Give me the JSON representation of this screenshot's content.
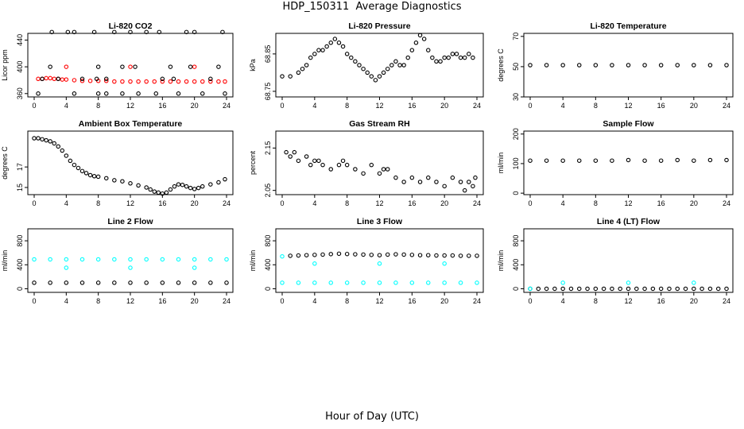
{
  "page": {
    "title": "HDP_150311  Average Diagnostics",
    "xlabel": "Hour of Day (UTC)"
  },
  "chart_data": [
    {
      "type": "scatter",
      "title": "Li-820 CO2",
      "ylabel": "Licor ppm",
      "xlim": [
        0,
        24
      ],
      "xticks": [
        0,
        4,
        8,
        12,
        16,
        20,
        24
      ],
      "ylim": [
        355,
        450
      ],
      "yticks": [
        360,
        400,
        440
      ],
      "series": [
        {
          "name": "main",
          "color": "#ff0000",
          "x": [
            0.5,
            1,
            1.5,
            2,
            2.5,
            3,
            3.5,
            4,
            5,
            6,
            7,
            8,
            9,
            10,
            11,
            12,
            13,
            14,
            15,
            16,
            17,
            18,
            19,
            20,
            21,
            22,
            23,
            23.8
          ],
          "y": [
            382,
            382,
            383,
            383,
            382,
            382,
            381,
            381,
            380,
            379,
            379,
            379,
            379,
            378,
            378,
            378,
            378,
            378,
            378,
            378,
            378,
            378,
            378,
            378,
            378,
            378,
            378,
            378
          ]
        },
        {
          "name": "red-outliers",
          "color": "#ff0000",
          "x": [
            4,
            12,
            20
          ],
          "y": [
            400,
            400,
            400
          ]
        },
        {
          "name": "black-outliers",
          "color": "#000000",
          "x": [
            0.5,
            1,
            2,
            2.2,
            3,
            4.2,
            5,
            5,
            6,
            7.5,
            7.8,
            8,
            8,
            9,
            9,
            10,
            11,
            11,
            12,
            12.6,
            13,
            14,
            15.2,
            15.6,
            16,
            17,
            17.4,
            18,
            19,
            19.5,
            20,
            21,
            22,
            23,
            23.5,
            23.8
          ],
          "y": [
            360,
            382,
            400,
            452,
            382,
            452,
            452,
            360,
            382,
            452,
            382,
            360,
            400,
            360,
            382,
            452,
            400,
            360,
            452,
            400,
            360,
            452,
            360,
            452,
            382,
            400,
            382,
            360,
            452,
            400,
            452,
            360,
            382,
            400,
            452,
            360
          ]
        }
      ]
    },
    {
      "type": "scatter",
      "title": "Li-820 Pressure",
      "ylabel": "kPa",
      "xlim": [
        0,
        24
      ],
      "xticks": [
        0,
        4,
        8,
        12,
        16,
        20,
        24
      ],
      "ylim": [
        68.735,
        68.905
      ],
      "yticks": [
        68.75,
        68.85
      ],
      "series": [
        {
          "name": "black",
          "color": "#000000",
          "x": [
            0,
            1,
            2,
            2.5,
            3,
            3.5,
            4,
            4.5,
            5,
            5.5,
            6,
            6.5,
            7,
            7.5,
            8,
            8.5,
            9,
            9.5,
            10,
            10.5,
            11,
            11.5,
            12,
            12.5,
            13,
            13.5,
            14,
            14.5,
            15,
            15.5,
            16,
            16.5,
            17,
            17.5,
            18,
            18.5,
            19,
            19.5,
            20,
            20.5,
            21,
            21.5,
            22,
            22.5,
            23,
            23.5
          ],
          "y": [
            68.79,
            68.79,
            68.8,
            68.81,
            68.82,
            68.84,
            68.85,
            68.86,
            68.86,
            68.87,
            68.88,
            68.89,
            68.88,
            68.87,
            68.85,
            68.84,
            68.83,
            68.82,
            68.81,
            68.8,
            68.79,
            68.78,
            68.79,
            68.8,
            68.81,
            68.82,
            68.83,
            68.82,
            68.82,
            68.84,
            68.86,
            68.88,
            68.9,
            68.89,
            68.86,
            68.84,
            68.83,
            68.83,
            68.84,
            68.84,
            68.85,
            68.85,
            68.84,
            68.84,
            68.85,
            68.84
          ]
        }
      ]
    },
    {
      "type": "scatter",
      "title": "Li-820 Temperature",
      "ylabel": "degrees C",
      "xlim": [
        0,
        24
      ],
      "xticks": [
        0,
        4,
        8,
        12,
        16,
        20,
        24
      ],
      "ylim": [
        30,
        72
      ],
      "yticks": [
        30,
        50,
        70
      ],
      "series": [
        {
          "name": "main",
          "color": "#000000",
          "x": [
            0,
            2,
            4,
            6,
            8,
            10,
            12,
            14,
            16,
            18,
            20,
            22,
            24
          ],
          "y": [
            51,
            51,
            51,
            51,
            51,
            51,
            51,
            51,
            51,
            51,
            51,
            51,
            51
          ]
        }
      ]
    },
    {
      "type": "scatter",
      "title": "Ambient Box Temperature",
      "ylabel": "degrees C",
      "xlim": [
        0,
        24
      ],
      "xticks": [
        0,
        4,
        8,
        12,
        16,
        20,
        24
      ],
      "ylim": [
        14.3,
        20.5
      ],
      "yticks": [
        15,
        17
      ],
      "series": [
        {
          "name": "main",
          "color": "#000000",
          "x": [
            0,
            0.5,
            1,
            1.5,
            2,
            2.5,
            3,
            3.5,
            4,
            4.5,
            5,
            5.5,
            6,
            6.5,
            7,
            7.5,
            8,
            9,
            10,
            11,
            12,
            13,
            14,
            14.5,
            15,
            15.5,
            16,
            16.5,
            17,
            17.5,
            18,
            18.5,
            19,
            19.5,
            20,
            20.5,
            21,
            22,
            23,
            23.8
          ],
          "y": [
            19.8,
            19.8,
            19.7,
            19.6,
            19.5,
            19.3,
            19.0,
            18.6,
            18.1,
            17.6,
            17.2,
            16.9,
            16.6,
            16.4,
            16.2,
            16.1,
            16.05,
            15.9,
            15.7,
            15.6,
            15.4,
            15.2,
            15.0,
            14.8,
            14.6,
            14.5,
            14.4,
            14.5,
            14.8,
            15.1,
            15.3,
            15.25,
            15.1,
            14.95,
            14.85,
            14.95,
            15.1,
            15.3,
            15.5,
            15.8
          ]
        }
      ]
    },
    {
      "type": "scatter",
      "title": "Gas Stream RH",
      "ylabel": "percent",
      "xlim": [
        0,
        24
      ],
      "xticks": [
        0,
        4,
        8,
        12,
        16,
        20,
        24
      ],
      "ylim": [
        2.04,
        2.19
      ],
      "yticks": [
        2.05,
        2.15
      ],
      "series": [
        {
          "name": "black",
          "color": "#000000",
          "x": [
            0.5,
            1,
            1.5,
            2,
            3,
            3.5,
            4,
            4.5,
            5,
            6,
            7,
            7.5,
            8,
            9,
            10,
            11,
            12,
            12.5,
            13,
            14,
            15,
            16,
            17,
            18,
            19,
            20,
            21,
            22,
            22.5,
            23,
            23.5,
            23.8
          ],
          "y": [
            2.14,
            2.13,
            2.14,
            2.12,
            2.13,
            2.11,
            2.12,
            2.12,
            2.11,
            2.1,
            2.11,
            2.12,
            2.11,
            2.1,
            2.09,
            2.11,
            2.09,
            2.1,
            2.1,
            2.08,
            2.07,
            2.08,
            2.07,
            2.08,
            2.07,
            2.06,
            2.08,
            2.07,
            2.05,
            2.07,
            2.06,
            2.08
          ]
        }
      ]
    },
    {
      "type": "scatter",
      "title": "Sample Flow",
      "ylabel": "ml/min",
      "xlim": [
        0,
        24
      ],
      "xticks": [
        0,
        4,
        8,
        12,
        16,
        20,
        24
      ],
      "ylim": [
        -5,
        210
      ],
      "yticks": [
        0,
        100,
        200
      ],
      "series": [
        {
          "name": "main",
          "color": "#000000",
          "x": [
            0,
            2,
            4,
            6,
            8,
            10,
            12,
            14,
            16,
            18,
            20,
            22,
            24
          ],
          "y": [
            110,
            110,
            110,
            110,
            110,
            110,
            112,
            110,
            110,
            112,
            110,
            112,
            112
          ]
        }
      ]
    },
    {
      "type": "scatter",
      "title": "Line 2 Flow",
      "ylabel": "ml/min",
      "xlim": [
        0,
        24
      ],
      "xticks": [
        0,
        4,
        8,
        12,
        16,
        20,
        24
      ],
      "ylim": [
        -60,
        1000
      ],
      "yticks": [
        0,
        400,
        800
      ],
      "series": [
        {
          "name": "black",
          "color": "#000000",
          "x": [
            0,
            2,
            4,
            6,
            8,
            10,
            12,
            14,
            16,
            18,
            20,
            22,
            24
          ],
          "y": [
            100,
            100,
            100,
            100,
            100,
            100,
            100,
            100,
            100,
            100,
            100,
            100,
            100
          ]
        },
        {
          "name": "cyan",
          "color": "#00ffff",
          "x": [
            0,
            2,
            4,
            6,
            8,
            10,
            12,
            14,
            16,
            18,
            20,
            22,
            24
          ],
          "y": [
            490,
            490,
            490,
            490,
            490,
            490,
            490,
            490,
            490,
            490,
            490,
            490,
            490
          ]
        },
        {
          "name": "cyan-outliers",
          "color": "#00ffff",
          "x": [
            4,
            12,
            20
          ],
          "y": [
            350,
            350,
            350
          ]
        }
      ]
    },
    {
      "type": "scatter",
      "title": "Line 3 Flow",
      "ylabel": "ml/min",
      "xlim": [
        0,
        24
      ],
      "xticks": [
        0,
        4,
        8,
        12,
        16,
        20,
        24
      ],
      "ylim": [
        -60,
        1000
      ],
      "yticks": [
        0,
        400,
        800
      ],
      "series": [
        {
          "name": "black",
          "color": "#000000",
          "x": [
            1,
            2,
            3,
            4,
            5,
            6,
            7,
            8,
            9,
            10,
            11,
            12,
            13,
            14,
            15,
            16,
            17,
            18,
            19,
            20,
            21,
            22,
            23,
            24
          ],
          "y": [
            550,
            555,
            560,
            565,
            570,
            578,
            585,
            580,
            575,
            570,
            565,
            560,
            570,
            575,
            570,
            565,
            560,
            560,
            555,
            555,
            555,
            550,
            550,
            550
          ]
        },
        {
          "name": "cyan",
          "color": "#00ffff",
          "x": [
            0,
            2,
            4,
            6,
            8,
            10,
            12,
            14,
            16,
            18,
            20,
            22,
            24
          ],
          "y": [
            100,
            100,
            100,
            100,
            100,
            100,
            100,
            100,
            100,
            100,
            100,
            100,
            100
          ]
        },
        {
          "name": "cyan-outliers",
          "color": "#00ffff",
          "x": [
            0,
            4,
            12,
            20
          ],
          "y": [
            540,
            420,
            420,
            420
          ]
        }
      ]
    },
    {
      "type": "scatter",
      "title": "Line 4 (LT) Flow",
      "ylabel": "ml/min",
      "xlim": [
        0,
        24
      ],
      "xticks": [
        0,
        4,
        8,
        12,
        16,
        20,
        24
      ],
      "ylim": [
        -60,
        1000
      ],
      "yticks": [
        0,
        400,
        800
      ],
      "series": [
        {
          "name": "black",
          "color": "#000000",
          "x": [
            0,
            1,
            2,
            3,
            4,
            5,
            6,
            7,
            8,
            9,
            10,
            11,
            12,
            13,
            14,
            15,
            16,
            17,
            18,
            19,
            20,
            21,
            22,
            23,
            24
          ],
          "y": [
            0,
            0,
            0,
            0,
            0,
            0,
            0,
            0,
            0,
            0,
            0,
            0,
            0,
            0,
            0,
            0,
            0,
            0,
            0,
            0,
            0,
            0,
            0,
            0,
            0
          ]
        },
        {
          "name": "cyan-outliers",
          "color": "#00ffff",
          "x": [
            0,
            4,
            12,
            20
          ],
          "y": [
            0,
            100,
            100,
            100
          ]
        }
      ]
    }
  ]
}
